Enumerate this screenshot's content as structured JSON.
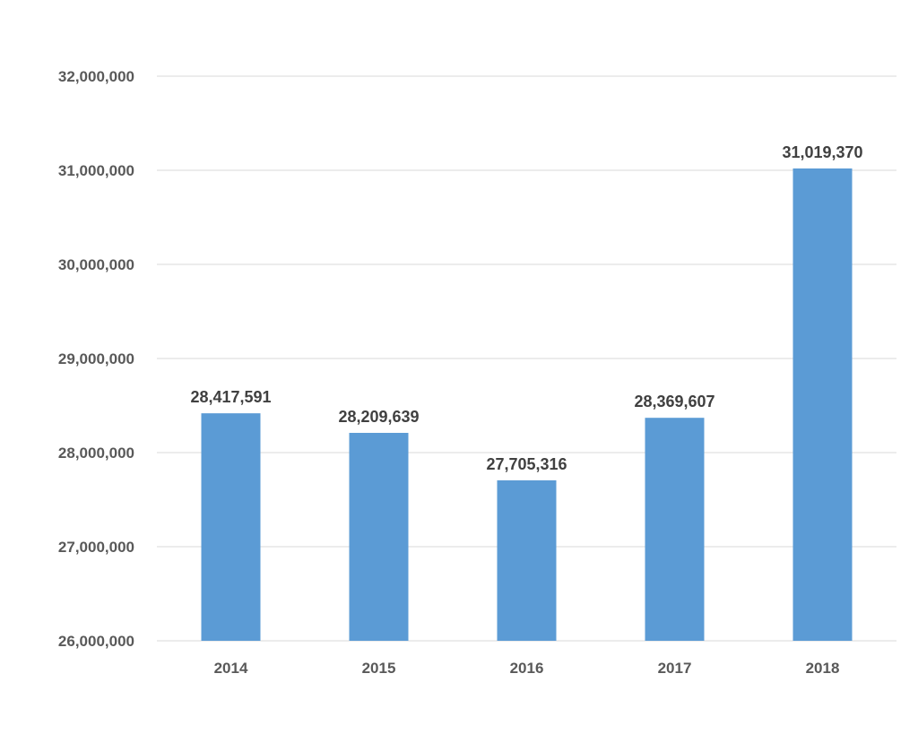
{
  "chart_data": {
    "type": "bar",
    "title": "",
    "xlabel": "",
    "ylabel": "",
    "categories": [
      "2014",
      "2015",
      "2016",
      "2017",
      "2018"
    ],
    "series": [
      {
        "values": [
          28417591,
          28209639,
          27705316,
          28369607,
          31019370
        ],
        "data_labels": [
          "28,417,591",
          "28,209,639",
          "27,705,316",
          "28,369,607",
          "31,019,370"
        ],
        "color": "#5B9BD5"
      }
    ],
    "ylim": [
      26000000,
      32000000
    ],
    "y_ticks": [
      26000000,
      27000000,
      28000000,
      29000000,
      30000000,
      31000000,
      32000000
    ],
    "y_tick_labels": [
      "26,000,000",
      "27,000,000",
      "28,000,000",
      "29,000,000",
      "30,000,000",
      "31,000,000",
      "32,000,000"
    ],
    "grid": true,
    "gridline_color": "#D9D9D9",
    "legend": "none"
  }
}
